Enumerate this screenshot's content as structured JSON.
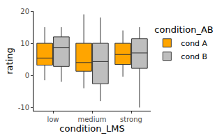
{
  "chart_data": {
    "type": "box",
    "x_label": "condition_LMS",
    "y_label": "rating",
    "legend_title": "condition_AB",
    "legend": "right",
    "grid": false,
    "categories": [
      "low",
      "medium",
      "strong"
    ],
    "ylim": [
      -11,
      20
    ],
    "yticks": [
      -10,
      0,
      10,
      20
    ],
    "series": [
      {
        "name": "cond A",
        "color": "#FFA500",
        "lowerfence": [
          -1.5,
          -4,
          -0.4
        ],
        "q1": [
          3.2,
          1.3,
          3.4
        ],
        "median": [
          5.4,
          4,
          6.5
        ],
        "q3": [
          10,
          10,
          10
        ],
        "upperfence": [
          15,
          19,
          14
        ]
      },
      {
        "name": "cond B",
        "color": "#BEBEBE",
        "lowerfence": [
          -2,
          -8,
          -10
        ],
        "q1": [
          2.8,
          -2.6,
          2.2
        ],
        "median": [
          8.6,
          4.3,
          7
        ],
        "q3": [
          12,
          10,
          11.4
        ],
        "upperfence": [
          15,
          18,
          15
        ]
      }
    ]
  }
}
